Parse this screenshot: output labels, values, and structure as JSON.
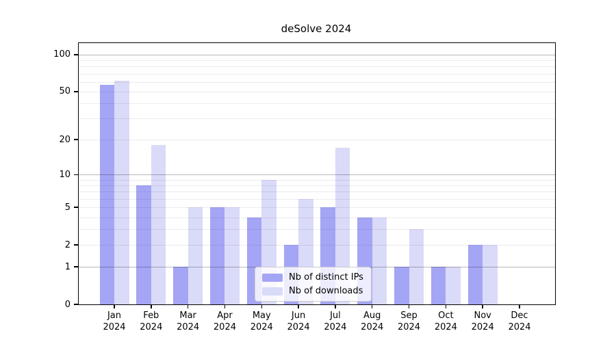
{
  "chart_data": {
    "type": "bar",
    "title": "deSolve 2024",
    "yscale": "log1p",
    "categories": [
      "Jan",
      "Feb",
      "Mar",
      "Apr",
      "May",
      "Jun",
      "Jul",
      "Aug",
      "Sep",
      "Oct",
      "Nov",
      "Dec"
    ],
    "category_year": "2024",
    "series": [
      {
        "name": "Nb of distinct IPs",
        "color": "#a5a5f5",
        "values": [
          57,
          8,
          1,
          5,
          4,
          2,
          5,
          4,
          1,
          1,
          2,
          0
        ]
      },
      {
        "name": "Nb of downloads",
        "color": "#dadaf9",
        "values": [
          61,
          18,
          5,
          5,
          9,
          6,
          17,
          4,
          3,
          1,
          2,
          0
        ]
      }
    ],
    "yticks": [
      {
        "label": "0",
        "value": 0
      },
      {
        "label": "1",
        "value": 1
      },
      {
        "label": "2",
        "value": 2
      },
      {
        "label": "5",
        "value": 5
      },
      {
        "label": "10",
        "value": 10
      },
      {
        "label": "20",
        "value": 20
      },
      {
        "label": "50",
        "value": 50
      },
      {
        "label": "100",
        "value": 100
      }
    ],
    "minor_gridlines": [
      2,
      3,
      4,
      5,
      6,
      7,
      8,
      9,
      20,
      30,
      40,
      50,
      60,
      70,
      80,
      90
    ],
    "major_gridlines": [
      1,
      10,
      100
    ],
    "ylim": [
      0,
      124
    ],
    "grid": true,
    "legend_position": "lower center",
    "colors": {
      "axis": "#000000",
      "text": "#000000",
      "background": "#ffffff",
      "grid_minor": "#ececec",
      "grid_major": "#b8b8b8"
    }
  }
}
